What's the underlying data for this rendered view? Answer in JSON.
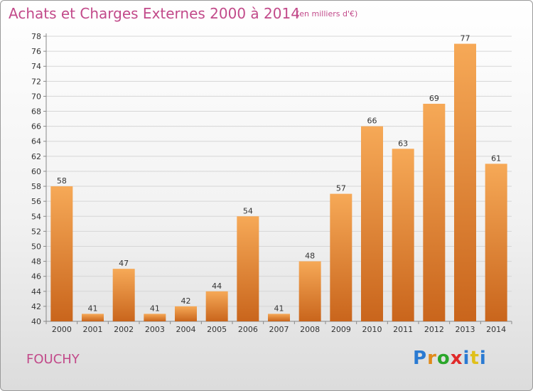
{
  "header": {
    "title": "Achats et Charges Externes 2000 à 2014",
    "unit": "(en milliers d'€)"
  },
  "footer": {
    "place": "FOUCHY"
  },
  "logo": {
    "text": "Proxiti",
    "letters": [
      "P",
      "r",
      "o",
      "x",
      "i",
      "t",
      "i"
    ],
    "colors": [
      "#2a7ad2",
      "#e08a1a",
      "#2aa62a",
      "#e02a2a",
      "#2a7ad2",
      "#e0c01a",
      "#2a7ad2"
    ]
  },
  "colors": {
    "bar_top": "#f6a957",
    "bar_bottom": "#c9651c",
    "title": "#c24a8a"
  },
  "chart_data": {
    "type": "bar",
    "title": "Achats et Charges Externes 2000 à 2014",
    "subtitle": "(en milliers d'€)",
    "categories": [
      "2000",
      "2001",
      "2002",
      "2003",
      "2004",
      "2005",
      "2006",
      "2007",
      "2008",
      "2009",
      "2010",
      "2011",
      "2012",
      "2013",
      "2014"
    ],
    "values": [
      58,
      41,
      47,
      41,
      42,
      44,
      54,
      41,
      48,
      57,
      66,
      63,
      69,
      77,
      61
    ],
    "ylim": [
      40,
      78
    ],
    "yticks": [
      40,
      42,
      44,
      46,
      48,
      50,
      52,
      54,
      56,
      58,
      60,
      62,
      64,
      66,
      68,
      70,
      72,
      74,
      76,
      78
    ],
    "grid": true,
    "xlabel": "",
    "ylabel": ""
  }
}
